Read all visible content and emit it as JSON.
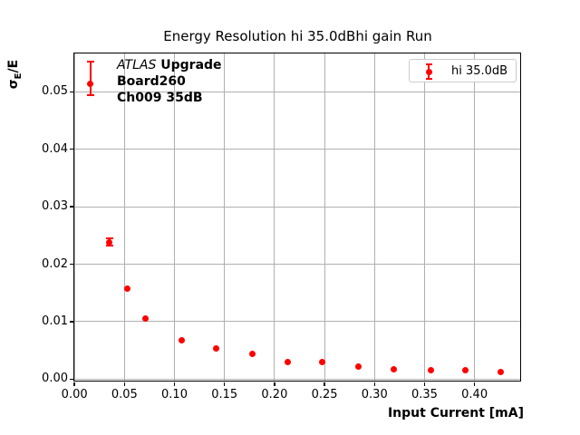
{
  "figure": {
    "title": "Energy Resolution hi 35.0dBhi gain Run",
    "xlabel": "Input Current [mA]",
    "ylabel": {
      "sigma": "σ",
      "sub": "E",
      "rest": "/E"
    },
    "annotation": {
      "project_italic": "ATLAS",
      "project_bold": " Upgrade",
      "board": "Board260",
      "channel": "Ch009 35dB"
    },
    "legend": {
      "entries": [
        {
          "label": "hi 35.0dB",
          "color": "#ff0000"
        }
      ]
    }
  },
  "colors": {
    "series": "#ff0000",
    "grid": "#b0b0b0",
    "spine": "#000000",
    "legend_border": "#cccccc",
    "background": "#ffffff"
  },
  "chart_data": {
    "type": "scatter",
    "title": "Energy Resolution hi 35.0dBhi gain Run",
    "xlabel": "Input Current [mA]",
    "ylabel": "sigma_E/E",
    "xlim": [
      -0.0015,
      0.447
    ],
    "ylim": [
      -0.0005,
      0.0569
    ],
    "xticks": [
      0.0,
      0.05,
      0.1,
      0.15,
      0.2,
      0.25,
      0.3,
      0.35,
      0.4
    ],
    "xtick_labels": [
      "0.00",
      "0.05",
      "0.10",
      "0.15",
      "0.20",
      "0.25",
      "0.30",
      "0.35",
      "0.40"
    ],
    "yticks": [
      0.0,
      0.01,
      0.02,
      0.03,
      0.04,
      0.05
    ],
    "ytick_labels": [
      "0.00",
      "0.01",
      "0.02",
      "0.03",
      "0.04",
      "0.05"
    ],
    "grid": true,
    "legend_position": "upper right",
    "series": [
      {
        "name": "hi 35.0dB",
        "color": "#ff0000",
        "marker": "circle",
        "points": [
          {
            "x": 0.016,
            "y": 0.0514,
            "err_up": 0.004,
            "err_down": 0.0021
          },
          {
            "x": 0.035,
            "y": 0.0238,
            "err_up": 0.0008,
            "err_down": 0.0008
          },
          {
            "x": 0.053,
            "y": 0.0158,
            "err_up": 0,
            "err_down": 0
          },
          {
            "x": 0.071,
            "y": 0.0106,
            "err_up": 0,
            "err_down": 0
          },
          {
            "x": 0.107,
            "y": 0.0068,
            "err_up": 0,
            "err_down": 0
          },
          {
            "x": 0.142,
            "y": 0.0054,
            "err_up": 0,
            "err_down": 0
          },
          {
            "x": 0.178,
            "y": 0.0044,
            "err_up": 0,
            "err_down": 0
          },
          {
            "x": 0.213,
            "y": 0.003,
            "err_up": 0,
            "err_down": 0
          },
          {
            "x": 0.248,
            "y": 0.0029,
            "err_up": 0,
            "err_down": 0
          },
          {
            "x": 0.284,
            "y": 0.0022,
            "err_up": 0,
            "err_down": 0
          },
          {
            "x": 0.319,
            "y": 0.0017,
            "err_up": 0,
            "err_down": 0
          },
          {
            "x": 0.356,
            "y": 0.0015,
            "err_up": 0,
            "err_down": 0
          },
          {
            "x": 0.391,
            "y": 0.0015,
            "err_up": 0,
            "err_down": 0
          },
          {
            "x": 0.426,
            "y": 0.0012,
            "err_up": 0,
            "err_down": 0
          }
        ]
      }
    ]
  }
}
